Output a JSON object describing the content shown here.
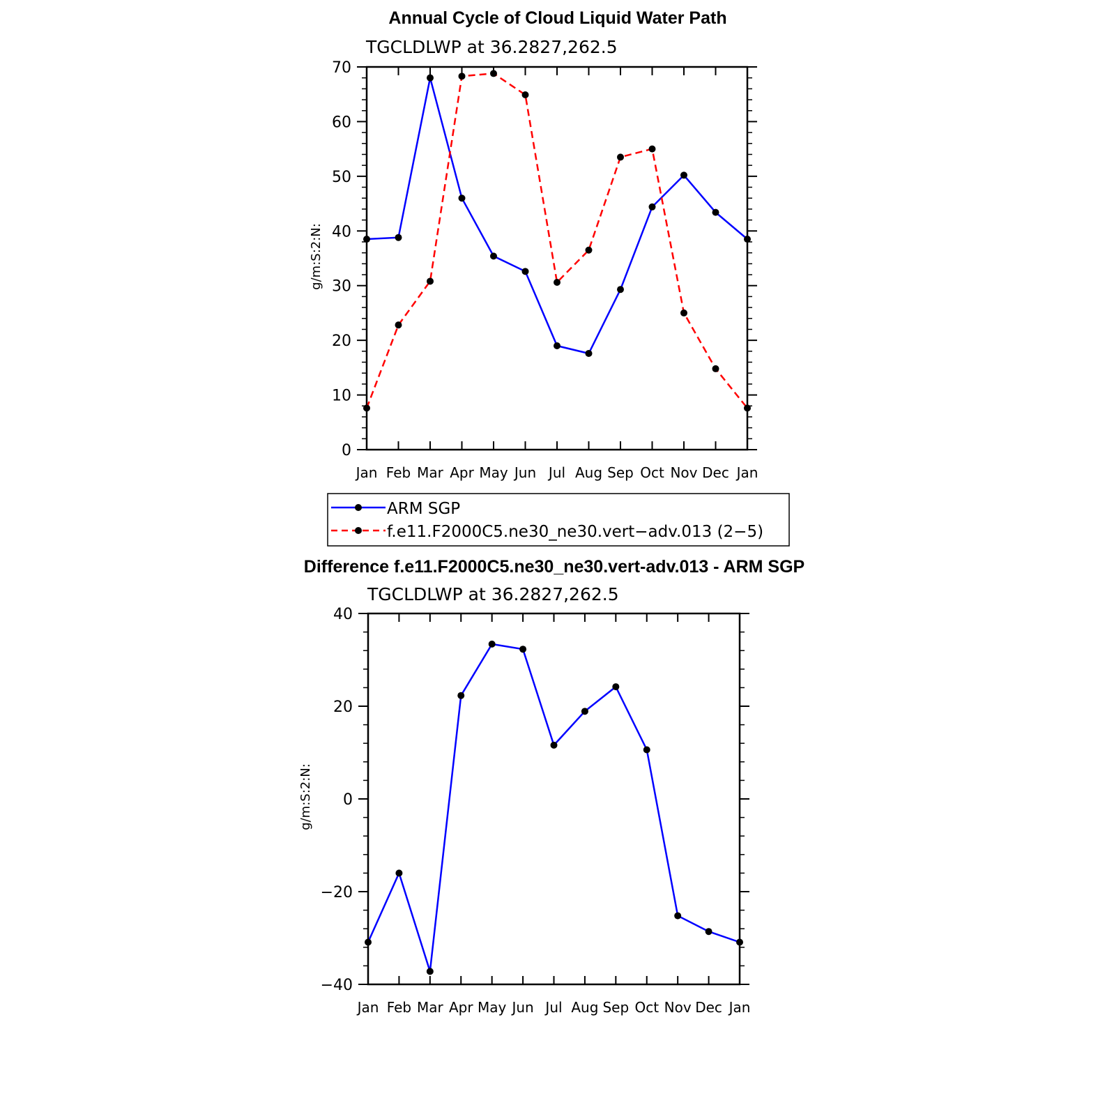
{
  "chart_data": [
    {
      "type": "line",
      "title": "Annual Cycle of Cloud Liquid Water Path",
      "subtitle": "TGCLDLWP  at 36.2827,262.5",
      "ylabel": "g/m:S:2:N:",
      "xlabel": "",
      "ylim": [
        0,
        70
      ],
      "yticks": [
        0,
        10,
        20,
        30,
        40,
        50,
        60,
        70
      ],
      "ytick_labels": [
        "0",
        "10",
        "20",
        "30",
        "40",
        "50",
        "60",
        "70"
      ],
      "categories": [
        "Jan",
        "Feb",
        "Mar",
        "Apr",
        "May",
        "Jun",
        "Jul",
        "Aug",
        "Sep",
        "Oct",
        "Nov",
        "Dec",
        "Jan"
      ],
      "series": [
        {
          "name": "ARM SGP",
          "color": "#0000ff",
          "dash": "solid",
          "values": [
            38.5,
            38.8,
            68.0,
            46.0,
            35.4,
            32.6,
            19.0,
            17.6,
            29.3,
            44.4,
            50.2,
            43.4,
            38.5
          ]
        },
        {
          "name": "f.e11.F2000C5.ne30_ne30.vert−adv.013 (2−5)",
          "color": "#ff0000",
          "dash": "dashed",
          "values": [
            7.6,
            22.8,
            30.8,
            68.3,
            68.8,
            64.9,
            30.6,
            36.5,
            53.5,
            55.0,
            25.0,
            14.8,
            7.6
          ]
        }
      ],
      "legend": "bottom-center"
    },
    {
      "type": "line",
      "title": "Difference f.e11.F2000C5.ne30_ne30.vert-adv.013 - ARM SGP",
      "subtitle": "TGCLDLWP  at 36.2827,262.5",
      "ylabel": "g/m:S:2:N:",
      "xlabel": "",
      "ylim": [
        -40,
        40
      ],
      "yticks": [
        -40,
        -20,
        0,
        20,
        40
      ],
      "ytick_labels": [
        "−40",
        "−20",
        "0",
        "20",
        "40"
      ],
      "categories": [
        "Jan",
        "Feb",
        "Mar",
        "Apr",
        "May",
        "Jun",
        "Jul",
        "Aug",
        "Sep",
        "Oct",
        "Nov",
        "Dec",
        "Jan"
      ],
      "series": [
        {
          "name": "Difference",
          "color": "#0000ff",
          "dash": "solid",
          "values": [
            -30.9,
            -16.0,
            -37.2,
            22.3,
            33.4,
            32.3,
            11.6,
            18.9,
            24.2,
            10.6,
            -25.2,
            -28.6,
            -30.9
          ]
        }
      ]
    }
  ]
}
